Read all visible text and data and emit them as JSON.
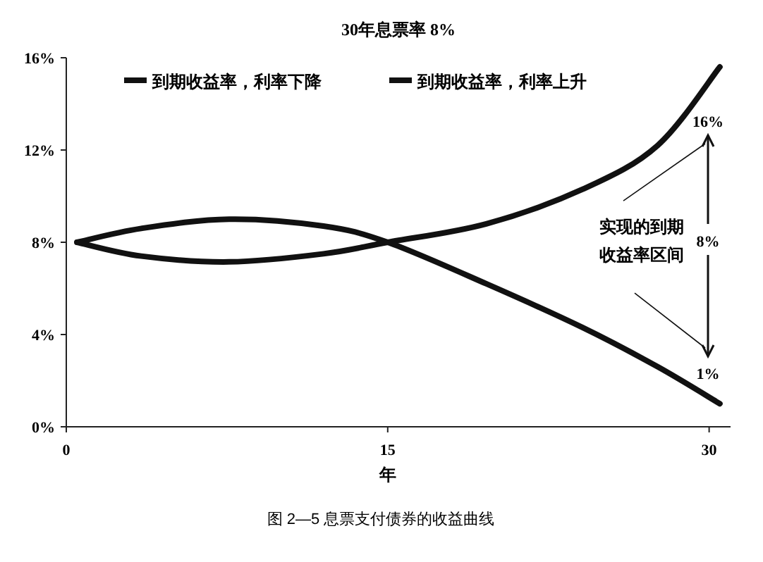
{
  "chart_data": {
    "type": "line",
    "title": "30年息票率 8%",
    "xlabel": "年",
    "series": [
      {
        "name": "到期收益率，利率下降",
        "color": "#111111",
        "x": [
          0.5,
          3.5,
          7.6,
          12,
          15,
          19.6,
          24.1,
          27.6,
          30.5
        ],
        "values": [
          8,
          8.6,
          9.0,
          8.7,
          8,
          6.2,
          4.3,
          2.6,
          1.0
        ]
      },
      {
        "name": "到期收益率，利率上升",
        "color": "#111111",
        "x": [
          0.5,
          3.5,
          7.6,
          12,
          15,
          19.6,
          24.1,
          27.6,
          30.5
        ],
        "values": [
          8,
          7.4,
          7.15,
          7.5,
          8,
          8.8,
          10.3,
          12.2,
          15.6
        ]
      }
    ],
    "xlim": [
      0,
      31
    ],
    "ylim": [
      0,
      16
    ],
    "xticks": [
      0,
      15,
      30
    ],
    "yticks": [
      {
        "value": 0,
        "label": "0%"
      },
      {
        "value": 4,
        "label": "4%"
      },
      {
        "value": 8,
        "label": "8%"
      },
      {
        "value": 12,
        "label": "12%"
      },
      {
        "value": 16,
        "label": "16%"
      }
    ],
    "annotations": [
      "16%",
      "8%",
      "1%",
      "实现的到期",
      "收益率区间",
      "图 2—5  息票支付债券的收益曲线"
    ],
    "legend": "top",
    "grid": false,
    "marker": "none",
    "line_style": "solid"
  }
}
